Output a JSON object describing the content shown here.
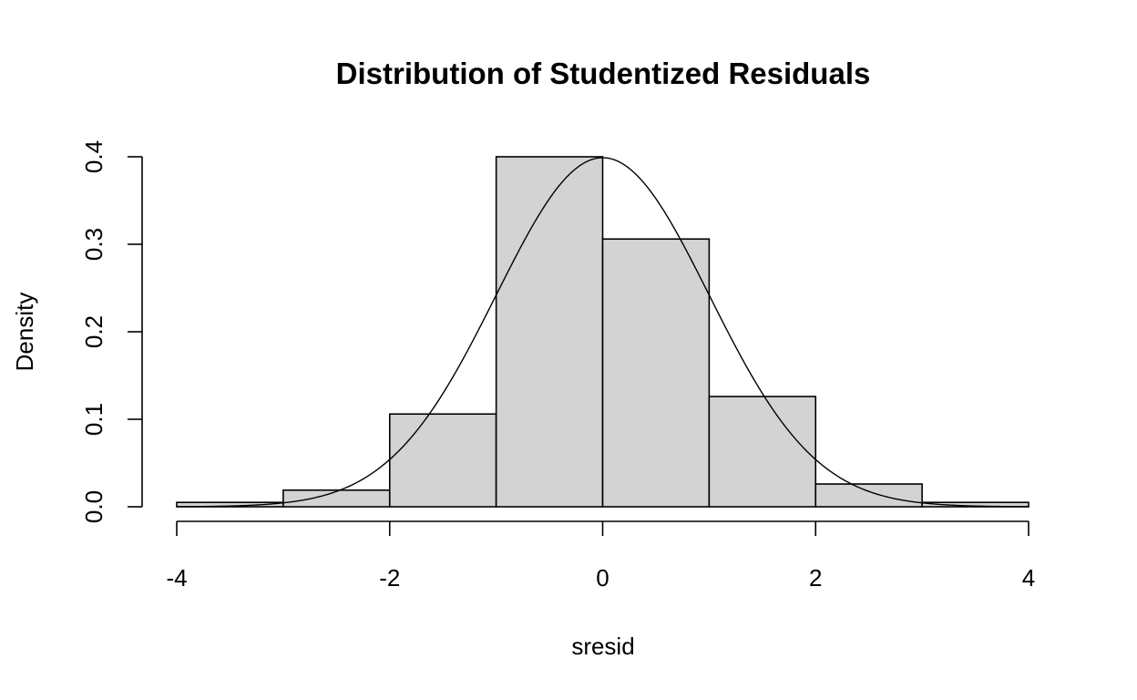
{
  "chart_data": {
    "type": "bar",
    "subtype": "histogram",
    "title": "Distribution of Studentized Residuals",
    "xlabel": "sresid",
    "ylabel": "Density",
    "bins": [
      {
        "x0": -4,
        "x1": -3,
        "density": 0.005
      },
      {
        "x0": -3,
        "x1": -2,
        "density": 0.019
      },
      {
        "x0": -2,
        "x1": -1,
        "density": 0.106
      },
      {
        "x0": -1,
        "x1": 0,
        "density": 0.4
      },
      {
        "x0": 0,
        "x1": 1,
        "density": 0.306
      },
      {
        "x0": 1,
        "x1": 2,
        "density": 0.126
      },
      {
        "x0": 2,
        "x1": 3,
        "density": 0.026
      },
      {
        "x0": 3,
        "x1": 4,
        "density": 0.005
      }
    ],
    "overlay": {
      "type": "line",
      "distribution": "normal",
      "mean": 0,
      "sd": 1
    },
    "xlim": [
      -4,
      4
    ],
    "ylim": [
      0,
      0.4
    ],
    "xticks": [
      -4,
      -2,
      0,
      2,
      4
    ],
    "xtick_labels": [
      "-4",
      "-2",
      "0",
      "2",
      "4"
    ],
    "yticks": [
      0,
      0.1,
      0.2,
      0.3,
      0.4
    ],
    "ytick_labels": [
      "0.0",
      "0.1",
      "0.2",
      "0.3",
      "0.4"
    ],
    "grid": false,
    "legend": "none",
    "colors": {
      "bar_fill": "#d3d3d3",
      "bar_stroke": "#000000",
      "curve": "#000000"
    }
  }
}
